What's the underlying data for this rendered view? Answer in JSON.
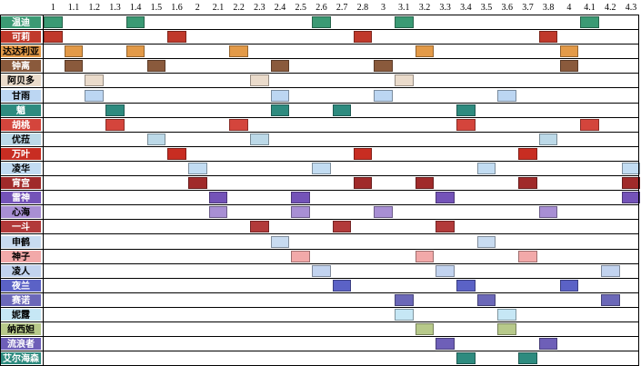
{
  "header": {
    "versions": [
      "1",
      "1.1",
      "1.2",
      "1.3",
      "1.4",
      "1.5",
      "1.6",
      "2",
      "2.1",
      "2.2",
      "2.3",
      "2.4",
      "2.5",
      "2.6",
      "2.7",
      "2.8",
      "3",
      "3.1",
      "3.2",
      "3.3",
      "3.4",
      "3.5",
      "3.6",
      "3.7",
      "3.8",
      "4",
      "4.1",
      "4.2",
      "4.3"
    ]
  },
  "rows": [
    {
      "name": "温迪",
      "label_bg": "#3b9a74",
      "label_color": "#ffffff",
      "cell_color": "#3b9a74",
      "cols": [
        0,
        4,
        13,
        17,
        26
      ]
    },
    {
      "name": "可莉",
      "label_bg": "#c0392b",
      "label_color": "#ffffff",
      "cell_color": "#c0392b",
      "cols": [
        0,
        6,
        15,
        24
      ]
    },
    {
      "name": "达达利亚",
      "label_bg": "#e39a48",
      "label_color": "#000000",
      "cell_color": "#e39a48",
      "cols": [
        1,
        4,
        9,
        18,
        25
      ]
    },
    {
      "name": "钟离",
      "label_bg": "#8a5a3c",
      "label_color": "#ffffff",
      "cell_color": "#8a5a3c",
      "cols": [
        1,
        5,
        11,
        16,
        25
      ]
    },
    {
      "name": "阿贝多",
      "label_bg": "#eadbcb",
      "label_color": "#000000",
      "cell_color": "#eadbcb",
      "cols": [
        2,
        10,
        17
      ]
    },
    {
      "name": "甘雨",
      "label_bg": "#bcd6f2",
      "label_color": "#000000",
      "cell_color": "#bcd6f2",
      "cols": [
        2,
        11,
        16,
        22
      ]
    },
    {
      "name": "魈",
      "label_bg": "#2e8b7f",
      "label_color": "#ffffff",
      "cell_color": "#2e8b7f",
      "cols": [
        3,
        11,
        14,
        20
      ]
    },
    {
      "name": "胡桃",
      "label_bg": "#d4453c",
      "label_color": "#ffffff",
      "cell_color": "#d4453c",
      "cols": [
        3,
        9,
        20,
        26
      ]
    },
    {
      "name": "优菈",
      "label_bg": "#bcd9e8",
      "label_color": "#000000",
      "cell_color": "#bcd9e8",
      "cols": [
        5,
        10,
        24
      ]
    },
    {
      "name": "万叶",
      "label_bg": "#c82d22",
      "label_color": "#ffffff",
      "cell_color": "#c82d22",
      "cols": [
        6,
        15,
        23
      ]
    },
    {
      "name": "凌华",
      "label_bg": "#c2dcf2",
      "label_color": "#000000",
      "cell_color": "#c2dcf2",
      "cols": [
        7,
        13,
        21,
        28
      ]
    },
    {
      "name": "宵宫",
      "label_bg": "#a02a2a",
      "label_color": "#ffffff",
      "cell_color": "#a02a2a",
      "cols": [
        7,
        15,
        18,
        23,
        28
      ]
    },
    {
      "name": "雷神",
      "label_bg": "#7453b8",
      "label_color": "#ffffff",
      "cell_color": "#7453b8",
      "cols": [
        8,
        12,
        19,
        28
      ]
    },
    {
      "name": "心海",
      "label_bg": "#a88fd4",
      "label_color": "#000000",
      "cell_color": "#a88fd4",
      "cols": [
        8,
        12,
        16,
        24
      ]
    },
    {
      "name": "一斗",
      "label_bg": "#b23a3a",
      "label_color": "#ffffff",
      "cell_color": "#b23a3a",
      "cols": [
        10,
        14,
        19
      ]
    },
    {
      "name": "申鹤",
      "label_bg": "#c8dbf0",
      "label_color": "#000000",
      "cell_color": "#c8dbf0",
      "cols": [
        11,
        21
      ]
    },
    {
      "name": "神子",
      "label_bg": "#f2a9a9",
      "label_color": "#000000",
      "cell_color": "#f2a9a9",
      "cols": [
        12,
        18,
        23
      ]
    },
    {
      "name": "凌人",
      "label_bg": "#c2d3ef",
      "label_color": "#000000",
      "cell_color": "#c2d3ef",
      "cols": [
        13,
        19,
        27
      ]
    },
    {
      "name": "夜兰",
      "label_bg": "#5b62c6",
      "label_color": "#ffffff",
      "cell_color": "#5b62c6",
      "cols": [
        14,
        20,
        25
      ]
    },
    {
      "name": "赛诺",
      "label_bg": "#6b68b8",
      "label_color": "#ffffff",
      "cell_color": "#6b68b8",
      "cols": [
        17,
        21,
        27
      ]
    },
    {
      "name": "妮露",
      "label_bg": "#c6e7f5",
      "label_color": "#000000",
      "cell_color": "#c6e7f5",
      "cols": [
        17,
        22
      ]
    },
    {
      "name": "纳西妲",
      "label_bg": "#b7c98a",
      "label_color": "#000000",
      "cell_color": "#b7c98a",
      "cols": [
        18,
        22
      ]
    },
    {
      "name": "流浪者",
      "label_bg": "#6e5fb8",
      "label_color": "#ffffff",
      "cell_color": "#6e5fb8",
      "cols": [
        19,
        24
      ]
    },
    {
      "name": "艾尔海森",
      "label_bg": "#2e8b7f",
      "label_color": "#ffffff",
      "cell_color": "#2e8b7f",
      "cols": [
        20,
        23
      ]
    }
  ]
}
